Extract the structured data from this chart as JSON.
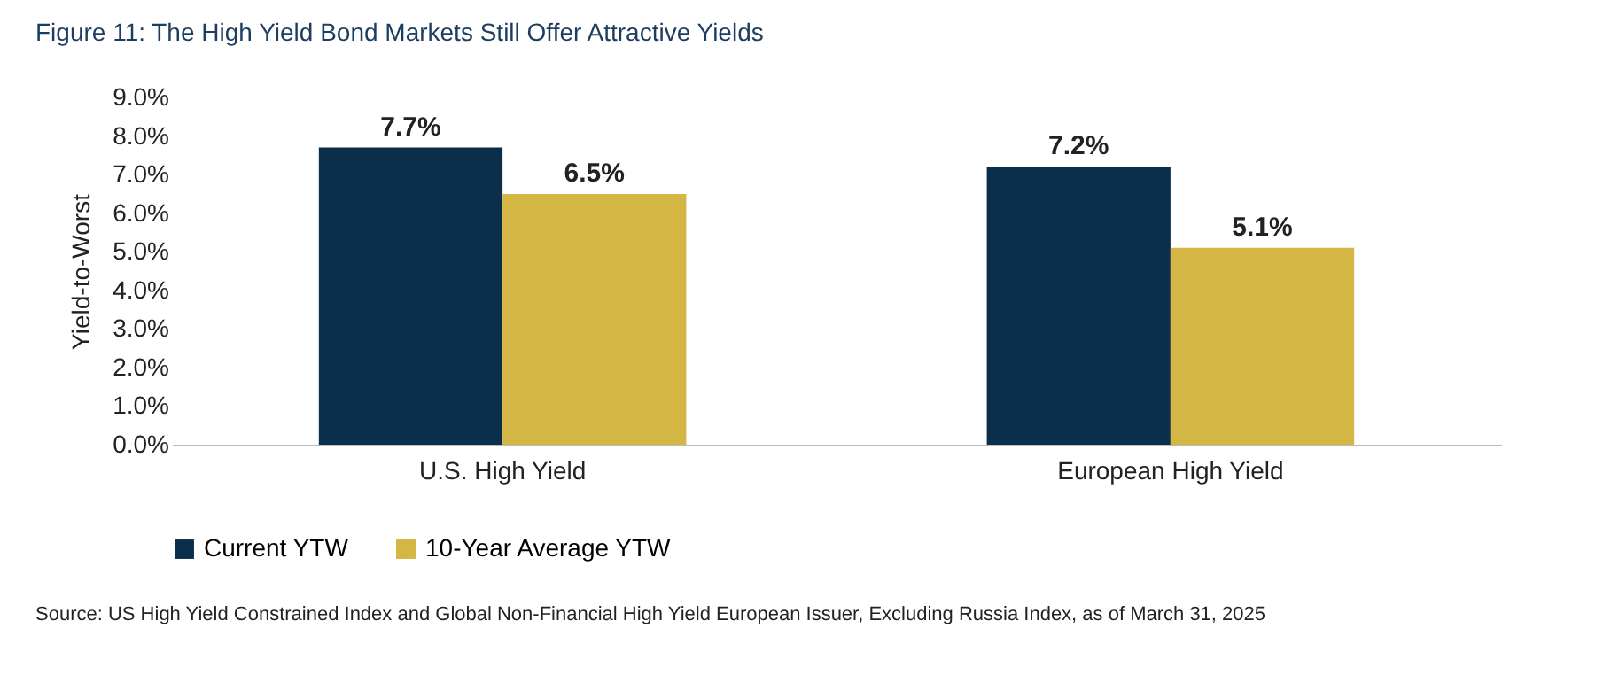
{
  "chart_data": {
    "type": "bar",
    "title": "Figure 11: The High Yield Bond Markets Still Offer Attractive Yields",
    "ylabel": "Yield-to-Worst",
    "categories": [
      "U.S. High Yield",
      "European High Yield"
    ],
    "series": [
      {
        "name": "Current YTW",
        "color": "#0b2f4b",
        "values": [
          7.7,
          7.2
        ],
        "value_labels": [
          "7.7%",
          "7.2%"
        ]
      },
      {
        "name": "10-Year Average YTW",
        "color": "#d4b645",
        "values": [
          6.5,
          5.1
        ],
        "value_labels": [
          "6.5%",
          "5.1%"
        ]
      }
    ],
    "ylim": [
      0,
      9
    ],
    "yticks": [
      {
        "value": 0,
        "label": "0.0%"
      },
      {
        "value": 1,
        "label": "1.0%"
      },
      {
        "value": 2,
        "label": "2.0%"
      },
      {
        "value": 3,
        "label": "3.0%"
      },
      {
        "value": 4,
        "label": "4.0%"
      },
      {
        "value": 5,
        "label": "5.0%"
      },
      {
        "value": 6,
        "label": "6.0%"
      },
      {
        "value": 7,
        "label": "7.0%"
      },
      {
        "value": 8,
        "label": "8.0%"
      },
      {
        "value": 9,
        "label": "9.0%"
      }
    ],
    "grid": false,
    "legend": "bottom",
    "annotations": [
      "Source: US High Yield Constrained Index and Global Non-Financial High Yield European Issuer, Excluding Russia Index, as of March 31, 2025"
    ]
  }
}
